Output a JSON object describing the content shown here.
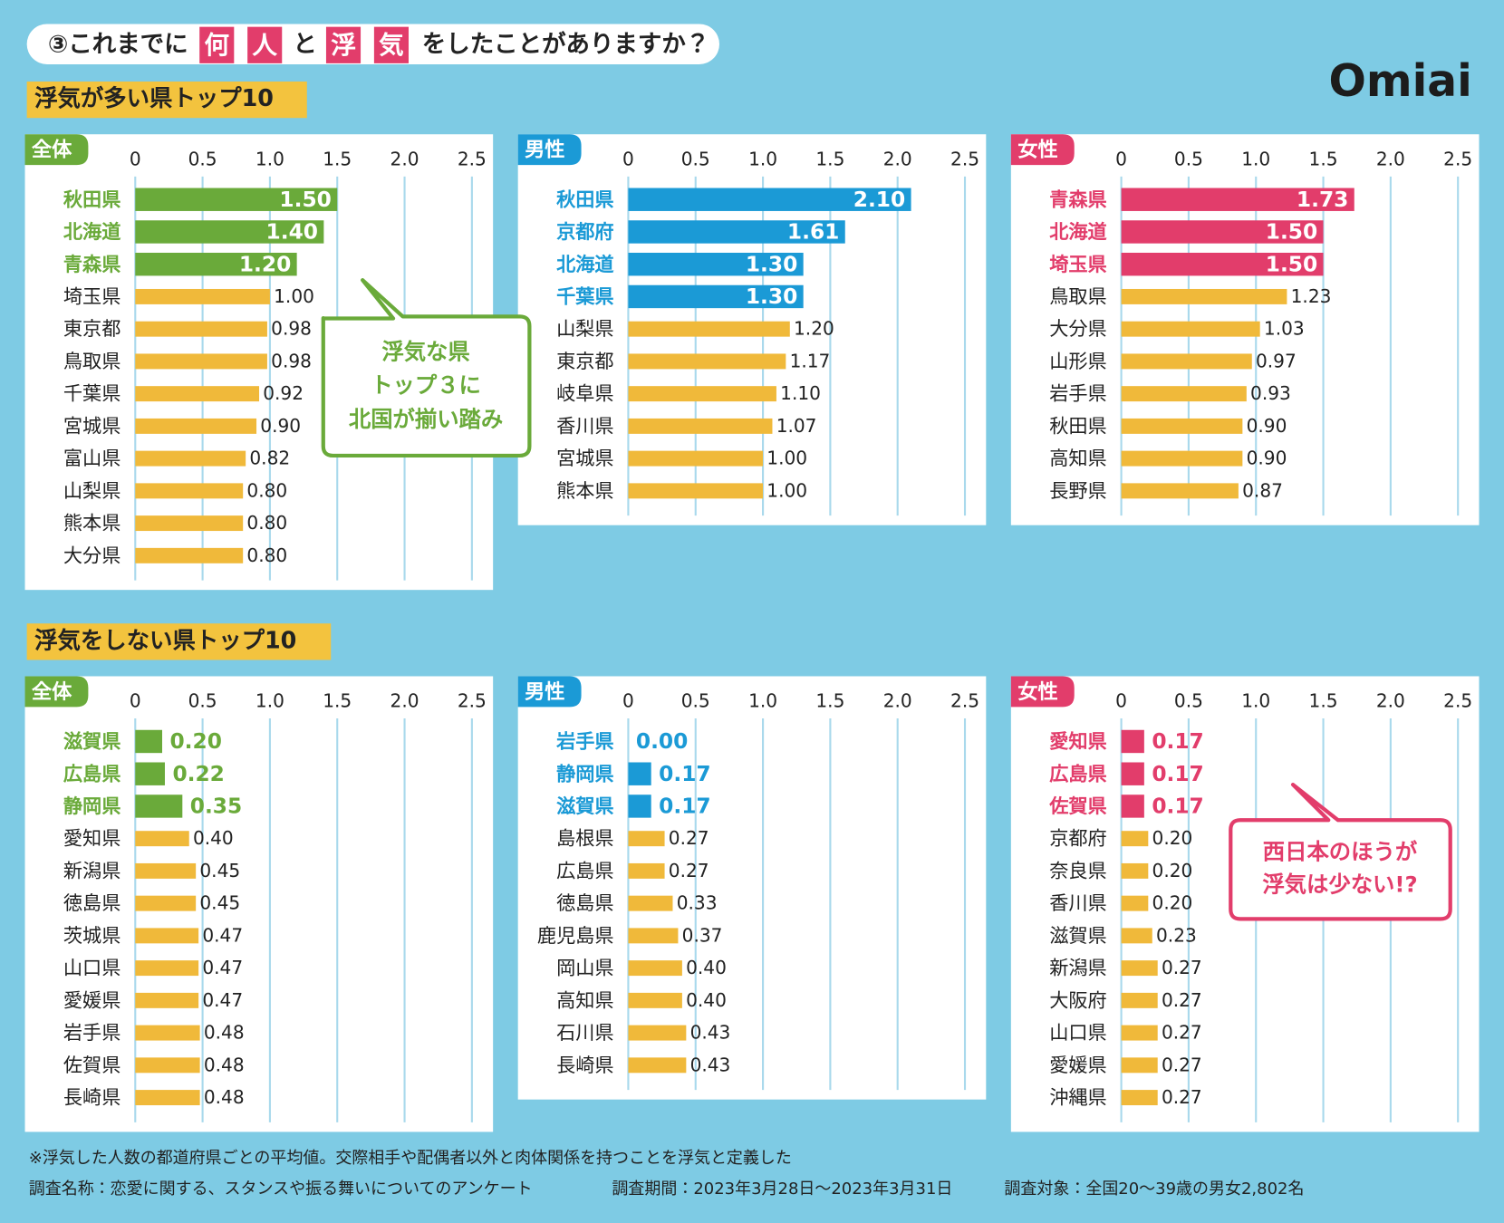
{
  "header": {
    "prefix": "③これまでに",
    "box1": "何",
    "box2": "人",
    "middle": "と",
    "box3": "浮",
    "box4": "気",
    "suffix": "をしたことがありますか？"
  },
  "logo": "Omiai",
  "sections": [
    "浮気が多い県トップ10",
    "浮気をしない県トップ10"
  ],
  "callouts": [
    {
      "lines": [
        "浮気な県",
        "トップ３に",
        "北国が揃い踏み"
      ],
      "color": "#6aaa3a"
    },
    {
      "lines": [
        "西日本のほうが",
        "浮気は少ない!?"
      ],
      "color": "#e23d6b"
    }
  ],
  "chart_data": [
    {
      "type": "bar",
      "orientation": "horizontal",
      "title": "全体",
      "highlight_color": "#6aaa3a",
      "bar_color": "#f0b93a",
      "categories": [
        "秋田県",
        "北海道",
        "青森県",
        "埼玉県",
        "東京都",
        "鳥取県",
        "千葉県",
        "宮城県",
        "富山県",
        "山梨県",
        "熊本県",
        "大分県"
      ],
      "values": [
        1.5,
        1.4,
        1.2,
        1,
        0.98,
        0.98,
        0.92,
        0.9,
        0.82,
        0.8,
        0.8,
        0.8
      ],
      "value_labels": [
        "1.50",
        "1.40",
        "1.20",
        "1.00",
        "0.98",
        "0.98",
        "0.92",
        "0.90",
        "0.82",
        "0.80",
        "0.80",
        "0.80"
      ],
      "highlighted": [
        true,
        true,
        true,
        false,
        false,
        false,
        false,
        false,
        false,
        false,
        false,
        false
      ],
      "xlim": [
        0,
        2.5
      ],
      "xticks": [
        0,
        0.5,
        {
          "value": 1,
          "label": "1.0"
        },
        1.5,
        {
          "value": 2,
          "label": "2.0"
        },
        2.5
      ],
      "grid": true
    },
    {
      "type": "bar",
      "orientation": "horizontal",
      "title": "男性",
      "highlight_color": "#1b9ad6",
      "bar_color": "#f0b93a",
      "categories": [
        "秋田県",
        "京都府",
        "北海道",
        "千葉県",
        "山梨県",
        "東京都",
        "岐阜県",
        "香川県",
        "宮城県",
        "熊本県"
      ],
      "values": [
        2.1,
        1.61,
        1.3,
        1.3,
        1.2,
        1.17,
        1.1,
        1.07,
        1,
        1
      ],
      "value_labels": [
        "2.10",
        "1.61",
        "1.30",
        "1.30",
        "1.20",
        "1.17",
        "1.10",
        "1.07",
        "1.00",
        "1.00"
      ],
      "highlighted": [
        true,
        true,
        true,
        true,
        false,
        false,
        false,
        false,
        false,
        false
      ],
      "xlim": [
        0,
        2.5
      ],
      "xticks": [
        0,
        0.5,
        {
          "value": 1,
          "label": "1.0"
        },
        1.5,
        {
          "value": 2,
          "label": "2.0"
        },
        2.5
      ],
      "grid": true
    },
    {
      "type": "bar",
      "orientation": "horizontal",
      "title": "女性",
      "highlight_color": "#e23d6b",
      "bar_color": "#f0b93a",
      "categories": [
        "青森県",
        "北海道",
        "埼玉県",
        "鳥取県",
        "大分県",
        "山形県",
        "岩手県",
        "秋田県",
        "高知県",
        "長野県"
      ],
      "values": [
        1.73,
        1.5,
        1.5,
        1.23,
        1.03,
        0.97,
        0.93,
        0.9,
        0.9,
        0.87
      ],
      "value_labels": [
        "1.73",
        "1.50",
        "1.50",
        "1.23",
        "1.03",
        "0.97",
        "0.93",
        "0.90",
        "0.90",
        "0.87"
      ],
      "highlighted": [
        true,
        true,
        true,
        false,
        false,
        false,
        false,
        false,
        false,
        false
      ],
      "xlim": [
        0,
        2.5
      ],
      "xticks": [
        0,
        0.5,
        {
          "value": 1,
          "label": "1.0"
        },
        1.5,
        {
          "value": 2,
          "label": "2.0"
        },
        2.5
      ],
      "grid": true
    },
    {
      "type": "bar",
      "orientation": "horizontal",
      "title": "全体",
      "highlight_color": "#6aaa3a",
      "bar_color": "#f0b93a",
      "categories": [
        "滋賀県",
        "広島県",
        "静岡県",
        "愛知県",
        "新潟県",
        "徳島県",
        "茨城県",
        "山口県",
        "愛媛県",
        "岩手県",
        "佐賀県",
        "長崎県"
      ],
      "values": [
        0.2,
        0.22,
        0.35,
        0.4,
        0.45,
        0.45,
        0.47,
        0.47,
        0.47,
        0.48,
        0.48,
        0.48
      ],
      "value_labels": [
        "0.20",
        "0.22",
        "0.35",
        "0.40",
        "0.45",
        "0.45",
        "0.47",
        "0.47",
        "0.47",
        "0.48",
        "0.48",
        "0.48"
      ],
      "highlighted": [
        true,
        true,
        true,
        false,
        false,
        false,
        false,
        false,
        false,
        false,
        false,
        false
      ],
      "xlim": [
        0,
        2.5
      ],
      "xticks": [
        0,
        0.5,
        {
          "value": 1,
          "label": "1.0"
        },
        1.5,
        {
          "value": 2,
          "label": "2.0"
        },
        2.5
      ],
      "grid": true
    },
    {
      "type": "bar",
      "orientation": "horizontal",
      "title": "男性",
      "highlight_color": "#1b9ad6",
      "bar_color": "#f0b93a",
      "categories": [
        "岩手県",
        "静岡県",
        "滋賀県",
        "島根県",
        "広島県",
        "徳島県",
        "鹿児島県",
        "岡山県",
        "高知県",
        "石川県",
        "長崎県"
      ],
      "values": [
        0,
        0.17,
        0.17,
        0.27,
        0.27,
        0.33,
        0.37,
        0.4,
        0.4,
        0.43,
        0.43
      ],
      "value_labels": [
        "0.00",
        "0.17",
        "0.17",
        "0.27",
        "0.27",
        "0.33",
        "0.37",
        "0.40",
        "0.40",
        "0.43",
        "0.43"
      ],
      "highlighted": [
        true,
        true,
        true,
        false,
        false,
        false,
        false,
        false,
        false,
        false,
        false
      ],
      "xlim": [
        0,
        2.5
      ],
      "xticks": [
        0,
        0.5,
        {
          "value": 1,
          "label": "1.0"
        },
        1.5,
        {
          "value": 2,
          "label": "2.0"
        },
        2.5
      ],
      "grid": true
    },
    {
      "type": "bar",
      "orientation": "horizontal",
      "title": "女性",
      "highlight_color": "#e23d6b",
      "bar_color": "#f0b93a",
      "categories": [
        "愛知県",
        "広島県",
        "佐賀県",
        "京都府",
        "奈良県",
        "香川県",
        "滋賀県",
        "新潟県",
        "大阪府",
        "山口県",
        "愛媛県",
        "沖縄県"
      ],
      "values": [
        0.17,
        0.17,
        0.17,
        0.2,
        0.2,
        0.2,
        0.23,
        0.27,
        0.27,
        0.27,
        0.27,
        0.27
      ],
      "value_labels": [
        "0.17",
        "0.17",
        "0.17",
        "0.20",
        "0.20",
        "0.20",
        "0.23",
        "0.27",
        "0.27",
        "0.27",
        "0.27",
        "0.27"
      ],
      "highlighted": [
        true,
        true,
        true,
        false,
        false,
        false,
        false,
        false,
        false,
        false,
        false,
        false
      ],
      "xlim": [
        0,
        2.5
      ],
      "xticks": [
        0,
        0.5,
        {
          "value": 1,
          "label": "1.0"
        },
        1.5,
        {
          "value": 2,
          "label": "2.0"
        },
        2.5
      ],
      "grid": true
    }
  ],
  "footer": {
    "note": "※浮気した人数の都道府県ごとの平均値。交際相手や配偶者以外と肉体関係を持つことを浮気と定義した",
    "survey_name": "調査名称：恋愛に関する、スタンスや振る舞いについてのアンケート",
    "period": "調査期間：2023年3月28日～2023年3月31日",
    "target": "調査対象：全国20～39歳の男女2,802名"
  }
}
